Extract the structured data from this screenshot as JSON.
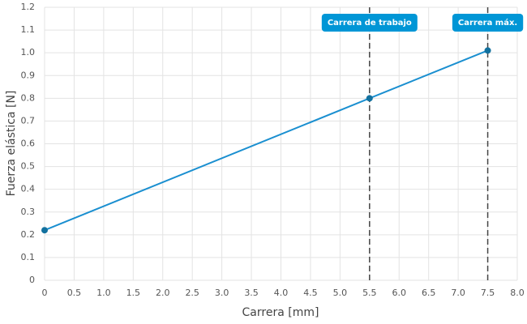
{
  "chart_data": {
    "type": "line",
    "xlabel": "Carrera [mm]",
    "ylabel": "Fuerza elástica [N]",
    "x": [
      0,
      5.5,
      7.5
    ],
    "values": [
      0.22,
      0.8,
      1.01
    ],
    "color": "#1a8fd0",
    "marker_color": "#12719f",
    "xlim": [
      0,
      8
    ],
    "ylim": [
      0,
      1.2
    ],
    "xticks": [
      0,
      0.5,
      {
        "value": 1,
        "label": "1.0"
      },
      1.5,
      {
        "value": 2,
        "label": "2.0"
      },
      2.5,
      {
        "value": 3,
        "label": "3.0"
      },
      3.5,
      {
        "value": 4,
        "label": "4.0"
      },
      4.5,
      {
        "value": 5,
        "label": "5.0"
      },
      5.5,
      {
        "value": 6,
        "label": "6.0"
      },
      6.5,
      {
        "value": 7,
        "label": "7.0"
      },
      7.5,
      {
        "value": 8,
        "label": "8.0"
      }
    ],
    "yticks": [
      0,
      0.1,
      0.2,
      0.3,
      0.4,
      0.5,
      0.6,
      0.7,
      0.8,
      0.9,
      {
        "value": 1,
        "label": "1.0"
      },
      1.1,
      1.2
    ],
    "grid": true,
    "annotations": [
      {
        "x": 5.5,
        "label": "Carrera de trabajo"
      },
      {
        "x": 7.5,
        "label": "Carrera máx."
      }
    ]
  }
}
